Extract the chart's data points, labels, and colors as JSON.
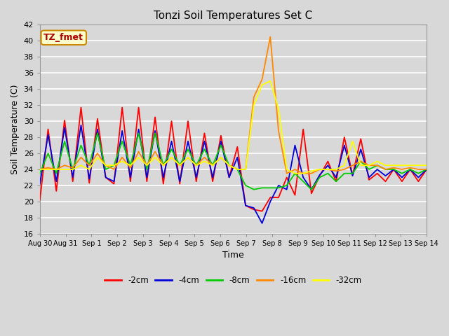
{
  "title": "Tonzi Soil Temperatures Set C",
  "xlabel": "Time",
  "ylabel": "Soil Temperature (C)",
  "ylim": [
    16,
    42
  ],
  "yticks": [
    16,
    18,
    20,
    22,
    24,
    26,
    28,
    30,
    32,
    34,
    36,
    38,
    40,
    42
  ],
  "fig_bg": "#d8d8d8",
  "plot_bg": "#d8d8d8",
  "annotation_text": "TZ_fmet",
  "annotation_bg": "#ffffcc",
  "annotation_border": "#cc8800",
  "annotation_text_color": "#aa0000",
  "colors": {
    "-2cm": "#ff0000",
    "-4cm": "#0000dd",
    "-8cm": "#00cc00",
    "-16cm": "#ff8800",
    "-32cm": "#ffff00"
  },
  "x_tick_labels": [
    "Aug 30",
    "Aug 31",
    "Sep 1",
    "Sep 2",
    "Sep 3",
    "Sep 4",
    "Sep 5",
    "Sep 6",
    "Sep 7",
    "Sep 8",
    "Sep 9",
    "Sep 10",
    "Sep 11",
    "Sep 12",
    "Sep 13",
    "Sep 14"
  ],
  "data": {
    "-2cm": [
      20.2,
      29.0,
      21.3,
      30.1,
      22.5,
      31.7,
      22.3,
      30.3,
      23.0,
      22.2,
      31.7,
      22.5,
      31.7,
      22.5,
      30.5,
      22.2,
      30.0,
      22.2,
      30.0,
      22.5,
      28.5,
      22.5,
      28.2,
      23.0,
      26.8,
      19.5,
      19.0,
      18.8,
      20.5,
      20.5,
      23.0,
      20.8,
      29.0,
      21.0,
      23.2,
      25.0,
      22.5,
      28.0,
      23.3,
      27.8,
      22.7,
      23.5,
      22.5,
      24.0,
      22.5,
      24.0,
      22.5,
      24.0
    ],
    "-4cm": [
      22.2,
      28.3,
      22.5,
      29.2,
      23.0,
      29.5,
      22.8,
      29.0,
      23.0,
      22.5,
      28.8,
      23.0,
      29.0,
      23.0,
      28.8,
      23.0,
      27.5,
      22.5,
      27.5,
      23.0,
      27.5,
      23.0,
      27.5,
      23.0,
      25.5,
      19.5,
      19.2,
      17.3,
      20.0,
      22.0,
      21.5,
      27.0,
      23.0,
      21.5,
      23.3,
      24.5,
      23.0,
      27.0,
      23.2,
      26.5,
      23.0,
      24.0,
      23.2,
      24.0,
      23.0,
      24.0,
      23.0,
      24.0
    ],
    "-8cm": [
      23.5,
      26.0,
      23.5,
      27.5,
      24.0,
      27.0,
      24.5,
      28.5,
      24.0,
      24.5,
      27.5,
      24.5,
      28.5,
      24.0,
      28.5,
      24.5,
      26.5,
      24.5,
      26.5,
      24.5,
      26.5,
      24.5,
      27.0,
      24.5,
      24.0,
      22.0,
      21.5,
      21.7,
      21.7,
      21.7,
      22.0,
      23.5,
      22.5,
      21.5,
      23.0,
      23.5,
      22.5,
      23.5,
      23.5,
      25.0,
      24.0,
      24.5,
      24.0,
      24.0,
      23.5,
      24.0,
      23.5,
      24.0
    ],
    "-16cm": [
      24.0,
      24.2,
      24.0,
      24.5,
      24.2,
      25.5,
      24.5,
      26.0,
      24.5,
      24.0,
      25.5,
      24.2,
      26.2,
      24.5,
      26.2,
      24.5,
      25.5,
      24.5,
      25.5,
      24.5,
      25.5,
      24.5,
      25.5,
      24.5,
      24.0,
      24.0,
      33.0,
      35.2,
      40.5,
      28.8,
      23.5,
      24.0,
      23.5,
      23.5,
      24.0,
      24.0,
      23.8,
      24.0,
      24.5,
      25.0,
      24.5,
      24.5,
      24.0,
      24.2,
      24.0,
      24.2,
      24.0,
      24.0
    ],
    "-32cm": [
      24.0,
      24.0,
      24.0,
      24.0,
      24.0,
      24.5,
      24.0,
      25.5,
      24.5,
      24.5,
      25.0,
      24.5,
      25.5,
      24.5,
      25.5,
      24.5,
      25.5,
      24.5,
      25.5,
      24.5,
      25.0,
      24.5,
      25.5,
      24.5,
      24.0,
      24.0,
      32.0,
      34.5,
      35.0,
      31.5,
      24.0,
      23.5,
      23.5,
      23.8,
      24.0,
      24.0,
      24.0,
      24.5,
      27.5,
      24.5,
      24.5,
      25.0,
      24.5,
      24.5,
      24.5,
      24.5,
      24.5,
      24.5
    ]
  }
}
